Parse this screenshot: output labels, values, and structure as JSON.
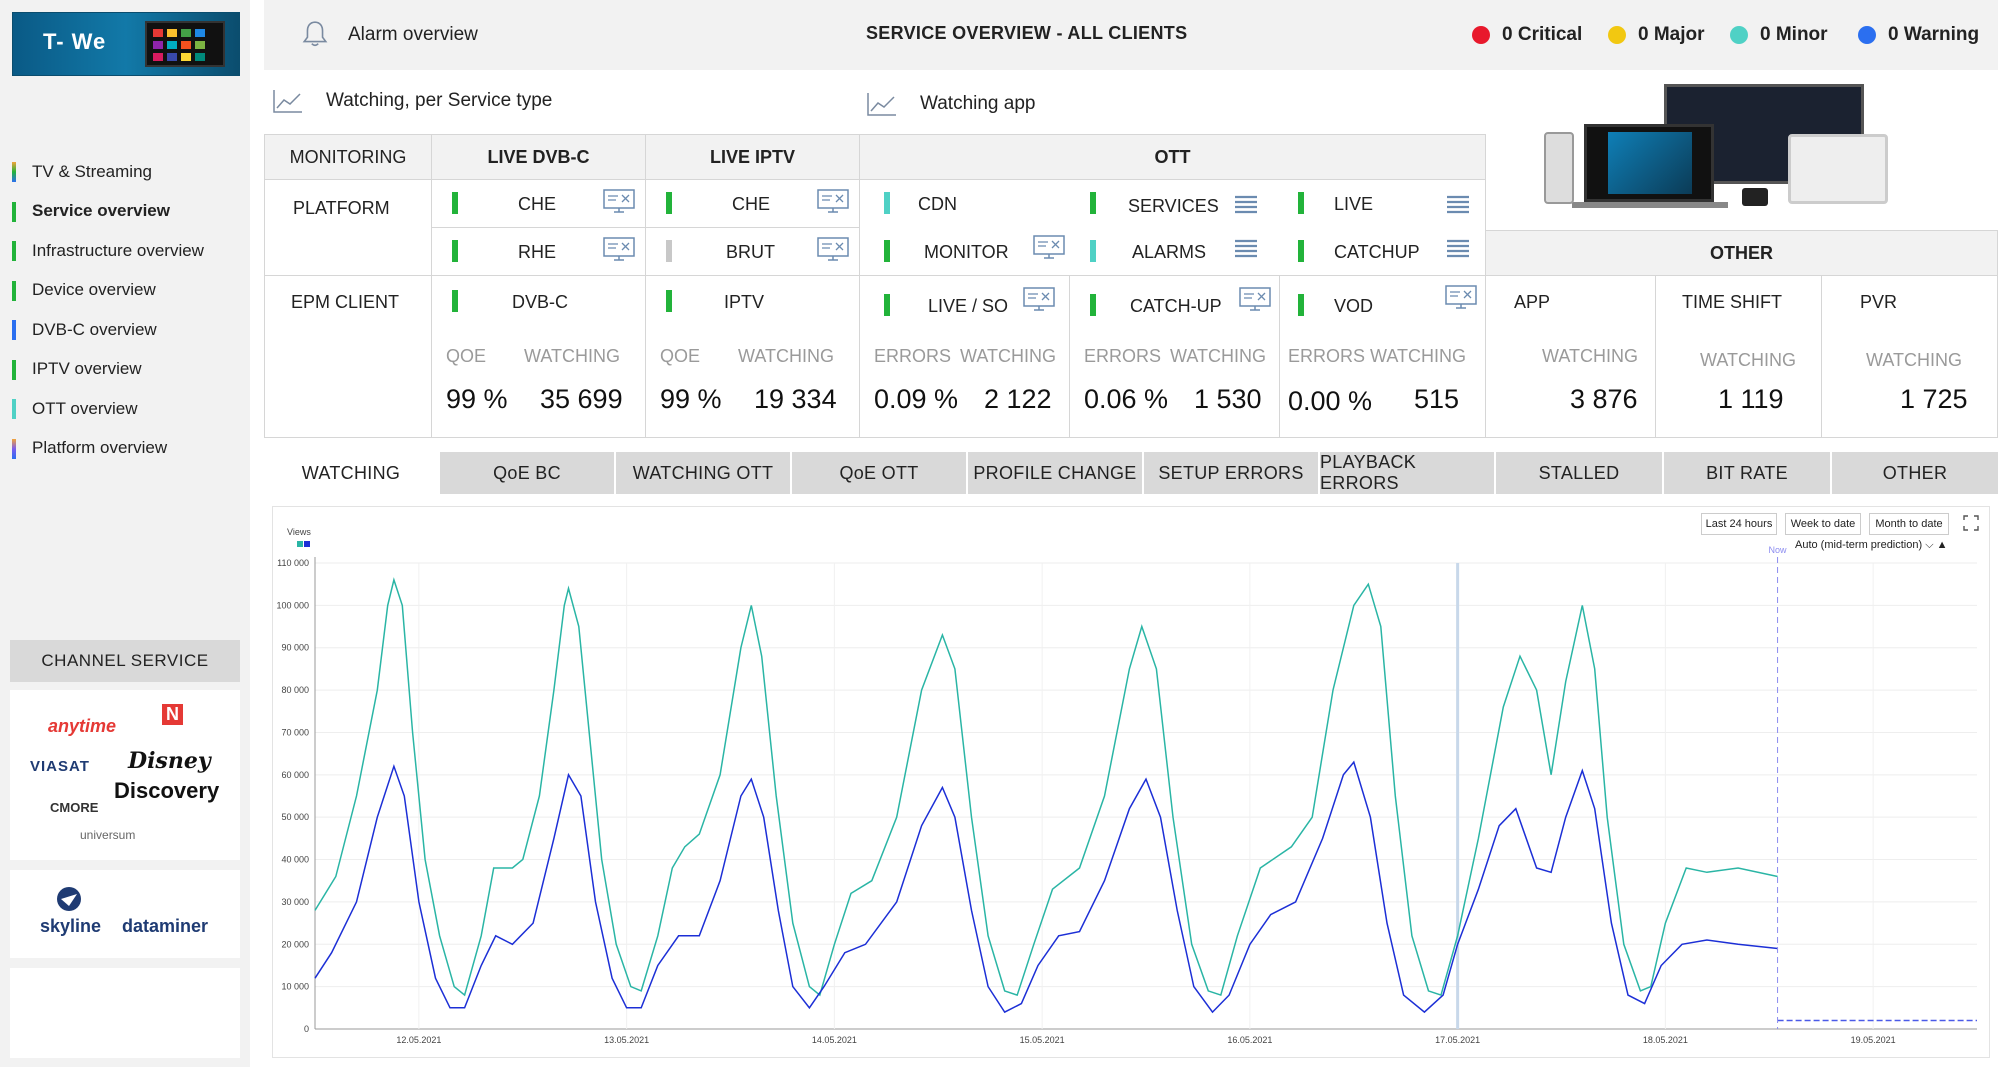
{
  "header": {
    "alarm_label": "Alarm overview",
    "title": "SERVICE OVERVIEW   -   ALL CLIENTS",
    "severities": [
      {
        "label": "0 Critical",
        "color": "#e8192c"
      },
      {
        "label": "0 Major",
        "color": "#f2c811"
      },
      {
        "label": "0 Minor",
        "color": "#4fd1c5"
      },
      {
        "label": "0 Warning",
        "color": "#2b6ff0"
      }
    ]
  },
  "logo": {
    "text": "T- We"
  },
  "sidebar": {
    "items": [
      {
        "label": "TV & Streaming",
        "color": "#f2a33a"
      },
      {
        "label": "Service overview",
        "color": "#22b33a"
      },
      {
        "label": "Infrastructure overview",
        "color": "#22b33a"
      },
      {
        "label": "Device overview",
        "color": "#22b33a"
      },
      {
        "label": "DVB-C overview",
        "color": "#2b6ff0"
      },
      {
        "label": "IPTV overview",
        "color": "#22b33a"
      },
      {
        "label": "OTT overview",
        "color": "#4fd1c5"
      },
      {
        "label": "Platform overview",
        "color": "#7a5cf0"
      }
    ],
    "channel_service": "CHANNEL SERVICE",
    "channel_brands": [
      "anytime",
      "N",
      "VIASAT",
      "Disney",
      "Discovery",
      "CMORE",
      "universum"
    ],
    "partners": [
      "skyline",
      "dataminer"
    ]
  },
  "links": {
    "watching_service_type": "Watching, per Service type",
    "watching_app": "Watching app"
  },
  "grid": {
    "headers": {
      "monitoring": "MONITORING",
      "dvbc": "LIVE DVB-C",
      "iptv": "LIVE IPTV",
      "ott": "OTT",
      "other": "OTHER"
    },
    "rows": {
      "platform": "PLATFORM",
      "epm_client": "EPM CLIENT"
    },
    "platform": {
      "dvbc": [
        "CHE",
        "RHE"
      ],
      "iptv": [
        "CHE",
        "BRUT"
      ],
      "ott_a": [
        "CDN",
        "MONITOR"
      ],
      "ott_b": [
        "SERVICES",
        "ALARMS"
      ],
      "ott_c": [
        "LIVE",
        "CATCHUP"
      ]
    },
    "epm": {
      "dvbc": "DVB-C",
      "iptv": "IPTV",
      "ott_a": "LIVE / SO",
      "ott_b": "CATCH-UP",
      "ott_c": "VOD",
      "app": "APP",
      "time_shift": "TIME SHIFT",
      "pvr": "PVR"
    },
    "metrics": {
      "dvbc": {
        "l1": "QOE",
        "v1": "99 %",
        "l2": "WATCHING",
        "v2": "35 699"
      },
      "iptv": {
        "l1": "QOE",
        "v1": "99 %",
        "l2": "WATCHING",
        "v2": "19 334"
      },
      "ott_a": {
        "l1": "ERRORS",
        "v1": "0.09 %",
        "l2": "WATCHING",
        "v2": "2 122"
      },
      "ott_b": {
        "l1": "ERRORS",
        "v1": "0.06 %",
        "l2": "WATCHING",
        "v2": "1 530"
      },
      "ott_c": {
        "l1": "ERRORS",
        "v1": "0.00 %",
        "l2": "WATCHING",
        "v2": "515"
      },
      "app": {
        "l2": "WATCHING",
        "v2": "3 876"
      },
      "time_shift": {
        "l2": "WATCHING",
        "v2": "1 119"
      },
      "pvr": {
        "l2": "WATCHING",
        "v2": "1 725"
      }
    }
  },
  "tabs": [
    "WATCHING",
    "QoE BC",
    "WATCHING OTT",
    "QoE OTT",
    "PROFILE CHANGE",
    "SETUP ERRORS",
    "PLAYBACK ERRORS",
    "STALLED",
    "BIT RATE",
    "OTHER"
  ],
  "chart_controls": {
    "ranges": [
      "Last 24 hours",
      "Week to date",
      "Month to date"
    ],
    "prediction": "Auto (mid-term prediction)",
    "now_label": "Now"
  },
  "chart_data": {
    "type": "line",
    "ylabel": "Views",
    "ylim": [
      0,
      110000
    ],
    "yticks": [
      "0",
      "10 000",
      "20 000",
      "30 000",
      "40 000",
      "50 000",
      "60 000",
      "70 000",
      "80 000",
      "90 000",
      "100 000",
      "110 000"
    ],
    "xticks": [
      "12.05.2021",
      "13.05.2021",
      "14.05.2021",
      "15.05.2021",
      "16.05.2021",
      "17.05.2021",
      "18.05.2021",
      "19.05.2021"
    ],
    "x_range_days": [
      11.5,
      19.5
    ],
    "now_day": 18.54,
    "series": [
      {
        "color": "#2ab5a5",
        "points": [
          [
            11.5,
            28000
          ],
          [
            11.6,
            36000
          ],
          [
            11.7,
            55000
          ],
          [
            11.8,
            80000
          ],
          [
            11.85,
            100000
          ],
          [
            11.88,
            106000
          ],
          [
            11.92,
            100000
          ],
          [
            11.97,
            70000
          ],
          [
            12.03,
            40000
          ],
          [
            12.1,
            22000
          ],
          [
            12.17,
            10000
          ],
          [
            12.22,
            8000
          ],
          [
            12.3,
            22000
          ],
          [
            12.36,
            38000
          ],
          [
            12.45,
            38000
          ],
          [
            12.5,
            40000
          ],
          [
            12.58,
            55000
          ],
          [
            12.65,
            80000
          ],
          [
            12.7,
            100000
          ],
          [
            12.72,
            104000
          ],
          [
            12.77,
            95000
          ],
          [
            12.82,
            70000
          ],
          [
            12.88,
            40000
          ],
          [
            12.95,
            20000
          ],
          [
            13.02,
            10000
          ],
          [
            13.07,
            9000
          ],
          [
            13.15,
            22000
          ],
          [
            13.22,
            38000
          ],
          [
            13.28,
            43000
          ],
          [
            13.35,
            46000
          ],
          [
            13.45,
            60000
          ],
          [
            13.55,
            90000
          ],
          [
            13.6,
            100000
          ],
          [
            13.65,
            88000
          ],
          [
            13.72,
            55000
          ],
          [
            13.8,
            25000
          ],
          [
            13.88,
            10000
          ],
          [
            13.93,
            8000
          ],
          [
            14.0,
            20000
          ],
          [
            14.08,
            32000
          ],
          [
            14.18,
            35000
          ],
          [
            14.3,
            50000
          ],
          [
            14.42,
            80000
          ],
          [
            14.52,
            93000
          ],
          [
            14.58,
            85000
          ],
          [
            14.66,
            50000
          ],
          [
            14.74,
            22000
          ],
          [
            14.82,
            9000
          ],
          [
            14.88,
            8000
          ],
          [
            14.96,
            20000
          ],
          [
            15.05,
            33000
          ],
          [
            15.18,
            38000
          ],
          [
            15.3,
            55000
          ],
          [
            15.42,
            85000
          ],
          [
            15.48,
            95000
          ],
          [
            15.55,
            85000
          ],
          [
            15.63,
            50000
          ],
          [
            15.72,
            20000
          ],
          [
            15.8,
            9000
          ],
          [
            15.86,
            8000
          ],
          [
            15.94,
            22000
          ],
          [
            16.05,
            38000
          ],
          [
            16.2,
            43000
          ],
          [
            16.3,
            50000
          ],
          [
            16.4,
            80000
          ],
          [
            16.5,
            100000
          ],
          [
            16.57,
            105000
          ],
          [
            16.63,
            95000
          ],
          [
            16.7,
            55000
          ],
          [
            16.78,
            22000
          ],
          [
            16.86,
            9000
          ],
          [
            16.92,
            8000
          ],
          [
            17.0,
            22000
          ],
          [
            17.1,
            45000
          ],
          [
            17.22,
            76000
          ],
          [
            17.3,
            88000
          ],
          [
            17.38,
            80000
          ],
          [
            17.45,
            60000
          ],
          [
            17.52,
            82000
          ],
          [
            17.6,
            100000
          ],
          [
            17.66,
            85000
          ],
          [
            17.72,
            50000
          ],
          [
            17.8,
            20000
          ],
          [
            17.88,
            9000
          ],
          [
            17.93,
            10000
          ],
          [
            18.0,
            25000
          ],
          [
            18.1,
            38000
          ],
          [
            18.2,
            37000
          ],
          [
            18.35,
            38000
          ],
          [
            18.54,
            36000
          ]
        ]
      },
      {
        "color": "#1c2fd6",
        "points": [
          [
            11.5,
            12000
          ],
          [
            11.58,
            18000
          ],
          [
            11.7,
            30000
          ],
          [
            11.8,
            50000
          ],
          [
            11.88,
            62000
          ],
          [
            11.93,
            55000
          ],
          [
            12.0,
            30000
          ],
          [
            12.08,
            12000
          ],
          [
            12.15,
            5000
          ],
          [
            12.22,
            5000
          ],
          [
            12.3,
            15000
          ],
          [
            12.37,
            22000
          ],
          [
            12.45,
            20000
          ],
          [
            12.55,
            25000
          ],
          [
            12.65,
            45000
          ],
          [
            12.72,
            60000
          ],
          [
            12.78,
            55000
          ],
          [
            12.85,
            30000
          ],
          [
            12.93,
            12000
          ],
          [
            13.0,
            5000
          ],
          [
            13.07,
            5000
          ],
          [
            13.15,
            15000
          ],
          [
            13.25,
            22000
          ],
          [
            13.35,
            22000
          ],
          [
            13.45,
            35000
          ],
          [
            13.55,
            55000
          ],
          [
            13.6,
            59000
          ],
          [
            13.66,
            50000
          ],
          [
            13.73,
            28000
          ],
          [
            13.8,
            10000
          ],
          [
            13.88,
            5000
          ],
          [
            13.95,
            10000
          ],
          [
            14.05,
            18000
          ],
          [
            14.15,
            20000
          ],
          [
            14.3,
            30000
          ],
          [
            14.42,
            48000
          ],
          [
            14.52,
            57000
          ],
          [
            14.58,
            50000
          ],
          [
            14.66,
            28000
          ],
          [
            14.74,
            10000
          ],
          [
            14.82,
            4000
          ],
          [
            14.9,
            6000
          ],
          [
            14.98,
            15000
          ],
          [
            15.08,
            22000
          ],
          [
            15.18,
            23000
          ],
          [
            15.3,
            35000
          ],
          [
            15.42,
            52000
          ],
          [
            15.5,
            59000
          ],
          [
            15.57,
            50000
          ],
          [
            15.65,
            28000
          ],
          [
            15.73,
            10000
          ],
          [
            15.82,
            4000
          ],
          [
            15.9,
            8000
          ],
          [
            16.0,
            20000
          ],
          [
            16.1,
            27000
          ],
          [
            16.22,
            30000
          ],
          [
            16.35,
            45000
          ],
          [
            16.45,
            60000
          ],
          [
            16.5,
            63000
          ],
          [
            16.58,
            50000
          ],
          [
            16.66,
            25000
          ],
          [
            16.74,
            8000
          ],
          [
            16.84,
            4000
          ],
          [
            16.93,
            8000
          ],
          [
            17.0,
            20000
          ],
          [
            17.1,
            33000
          ],
          [
            17.2,
            48000
          ],
          [
            17.28,
            52000
          ],
          [
            17.38,
            38000
          ],
          [
            17.45,
            37000
          ],
          [
            17.52,
            50000
          ],
          [
            17.6,
            61000
          ],
          [
            17.66,
            52000
          ],
          [
            17.74,
            25000
          ],
          [
            17.82,
            8000
          ],
          [
            17.9,
            6000
          ],
          [
            17.98,
            15000
          ],
          [
            18.08,
            20000
          ],
          [
            18.2,
            21000
          ],
          [
            18.35,
            20000
          ],
          [
            18.54,
            19000
          ]
        ]
      },
      {
        "color": "#4a5ae8",
        "points": [
          [
            18.54,
            2000
          ],
          [
            19.5,
            2000
          ]
        ]
      }
    ]
  }
}
